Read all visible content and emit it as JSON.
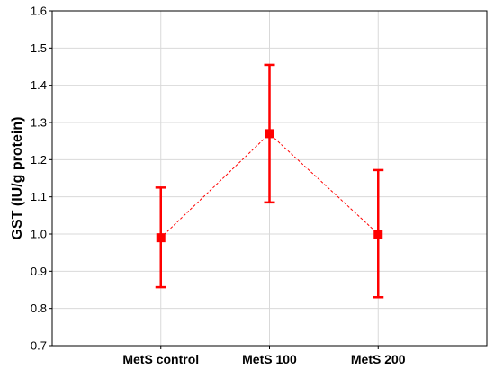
{
  "chart_data": {
    "type": "line",
    "title": "",
    "xlabel": "",
    "ylabel": "GST (IU/g protein)",
    "categories": [
      "MetS control",
      "MetS 100",
      "MetS 200"
    ],
    "y_ticks": [
      "0.7",
      "0.8",
      "0.9",
      "1.0",
      "1.1",
      "1.2",
      "1.3",
      "1.4",
      "1.5",
      "1.6"
    ],
    "ylim": [
      0.7,
      1.6
    ],
    "grid": true,
    "series": [
      {
        "values": [
          0.99,
          1.27,
          1.0
        ],
        "error_low": [
          0.857,
          1.085,
          0.83
        ],
        "error_high": [
          1.125,
          1.455,
          1.172
        ],
        "color": "#ff0000",
        "marker": "square",
        "line_style": "dashed"
      }
    ]
  }
}
